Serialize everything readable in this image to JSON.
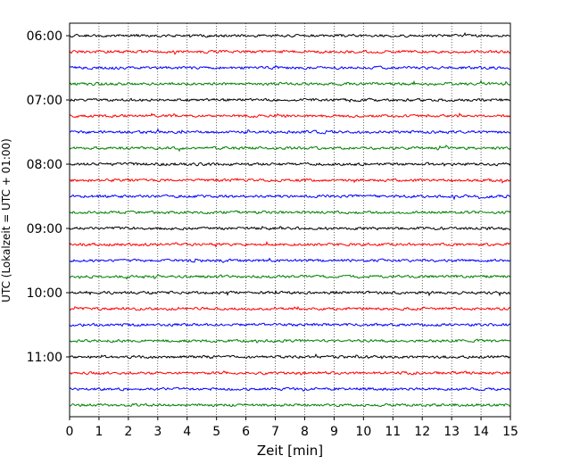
{
  "chart_data": {
    "type": "line",
    "title": "",
    "xlabel": "Zeit  [min]",
    "ylabel": "UTC (Lokalzeit = UTC + 01:00)",
    "xlim": [
      0,
      15
    ],
    "x_ticks": [
      0,
      1,
      2,
      3,
      4,
      5,
      6,
      7,
      8,
      9,
      10,
      11,
      12,
      13,
      14,
      15
    ],
    "x_tick_labels": [
      "0",
      "1",
      "2",
      "3",
      "4",
      "5",
      "6",
      "7",
      "8",
      "9",
      "10",
      "11",
      "12",
      "13",
      "14",
      "15"
    ],
    "y_tick_labels": [
      "06:00",
      "07:00",
      "08:00",
      "09:00",
      "10:00",
      "11:00"
    ],
    "y_tick_rows": [
      0,
      4,
      8,
      12,
      16,
      20
    ],
    "grid": "vertical dotted",
    "trace_colors": [
      "#000000",
      "#ff0000",
      "#0000ff",
      "#008000"
    ],
    "row_count": 24,
    "row_interval_min": 15
  }
}
